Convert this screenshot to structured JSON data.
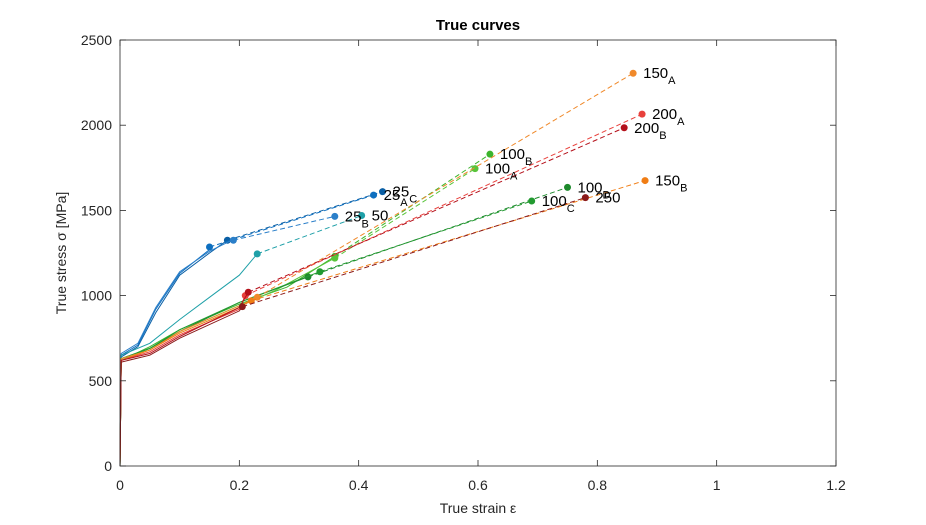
{
  "chart_data": {
    "type": "line",
    "title": "True curves",
    "xlabel": "True strain ε",
    "ylabel": "True stress σ [MPa]",
    "xlim": [
      0,
      1.2
    ],
    "ylim": [
      0,
      2500
    ],
    "xticks": [
      0,
      0.2,
      0.4,
      0.6,
      0.8,
      1,
      1.2
    ],
    "xtick_labels": [
      "0",
      "0.2",
      "0.4",
      "0.6",
      "0.8",
      "1",
      "1.2"
    ],
    "yticks": [
      0,
      500,
      1000,
      1500,
      2000,
      2500
    ],
    "ytick_labels": [
      "0",
      "500",
      "1000",
      "1500",
      "2000",
      "2500"
    ],
    "grid": false,
    "legend": "none",
    "series": [
      {
        "color": "#0a5fa5",
        "points": [
          [
            0,
            0
          ],
          [
            0.002,
            640
          ],
          [
            0.03,
            700
          ],
          [
            0.06,
            900
          ],
          [
            0.1,
            1120
          ],
          [
            0.15,
            1250
          ],
          [
            0.2,
            1340
          ],
          [
            0.3,
            1450
          ],
          [
            0.44,
            1560
          ]
        ],
        "neck": [
          0.18,
          1325
        ],
        "end": [
          0.44,
          1610
        ],
        "label_main": "25",
        "label_sub": "C"
      },
      {
        "color": "#0d6fc0",
        "points": [
          [
            0,
            0
          ],
          [
            0.002,
            650
          ],
          [
            0.03,
            710
          ],
          [
            0.06,
            920
          ],
          [
            0.1,
            1130
          ],
          [
            0.15,
            1270
          ],
          [
            0.2,
            1350
          ],
          [
            0.3,
            1460
          ],
          [
            0.42,
            1570
          ]
        ],
        "neck": [
          0.15,
          1285
        ],
        "end": [
          0.425,
          1590
        ],
        "label_main": "25",
        "label_sub": "A"
      },
      {
        "color": "#2b7fc9",
        "points": [
          [
            0,
            0
          ],
          [
            0.002,
            660
          ],
          [
            0.03,
            720
          ],
          [
            0.06,
            930
          ],
          [
            0.1,
            1140
          ],
          [
            0.15,
            1260
          ],
          [
            0.19,
            1330
          ],
          [
            0.3,
            1400
          ],
          [
            0.36,
            1440
          ]
        ],
        "neck": [
          0.19,
          1325
        ],
        "end": [
          0.36,
          1465
        ],
        "label_main": "25",
        "label_sub": "B"
      },
      {
        "color": "#1fa0a8",
        "points": [
          [
            0,
            0
          ],
          [
            0.002,
            650
          ],
          [
            0.05,
            720
          ],
          [
            0.1,
            860
          ],
          [
            0.15,
            990
          ],
          [
            0.2,
            1120
          ],
          [
            0.23,
            1245
          ],
          [
            0.3,
            1320
          ],
          [
            0.4,
            1470
          ]
        ],
        "neck": [
          0.23,
          1245
        ],
        "end": [
          0.405,
          1470
        ],
        "label_main": "50",
        "label_sub": ""
      },
      {
        "color": "#3cb42c",
        "points": [
          [
            0,
            0
          ],
          [
            0.002,
            620
          ],
          [
            0.05,
            700
          ],
          [
            0.1,
            800
          ],
          [
            0.2,
            950
          ],
          [
            0.28,
            1050
          ],
          [
            0.36,
            1230
          ],
          [
            0.5,
            1520
          ],
          [
            0.62,
            1830
          ]
        ],
        "neck": [
          0.36,
          1230
        ],
        "end": [
          0.62,
          1830
        ],
        "label_main": "100",
        "label_sub": "B"
      },
      {
        "color": "#58c43a",
        "points": [
          [
            0,
            0
          ],
          [
            0.002,
            620
          ],
          [
            0.05,
            690
          ],
          [
            0.1,
            790
          ],
          [
            0.2,
            940
          ],
          [
            0.26,
            1030
          ],
          [
            0.36,
            1220
          ],
          [
            0.48,
            1480
          ],
          [
            0.595,
            1745
          ]
        ],
        "neck": [
          0.36,
          1220
        ],
        "end": [
          0.595,
          1745
        ],
        "label_main": "100",
        "label_sub": "A"
      },
      {
        "color": "#1d8a2c",
        "points": [
          [
            0,
            0
          ],
          [
            0.002,
            630
          ],
          [
            0.05,
            690
          ],
          [
            0.1,
            790
          ],
          [
            0.2,
            960
          ],
          [
            0.315,
            1110
          ],
          [
            0.5,
            1340
          ],
          [
            0.75,
            1635
          ]
        ],
        "neck": [
          0.315,
          1110
        ],
        "end": [
          0.75,
          1635
        ],
        "label_main": "100",
        "label_sub": "D"
      },
      {
        "color": "#229a30",
        "points": [
          [
            0,
            0
          ],
          [
            0.002,
            630
          ],
          [
            0.05,
            690
          ],
          [
            0.1,
            800
          ],
          [
            0.2,
            960
          ],
          [
            0.335,
            1140
          ],
          [
            0.5,
            1320
          ],
          [
            0.69,
            1555
          ]
        ],
        "neck": [
          0.335,
          1140
        ],
        "end": [
          0.69,
          1555
        ],
        "label_main": "100",
        "label_sub": "C"
      },
      {
        "color": "#f0892a",
        "points": [
          [
            0,
            0
          ],
          [
            0.002,
            630
          ],
          [
            0.05,
            680
          ],
          [
            0.1,
            790
          ],
          [
            0.2,
            940
          ],
          [
            0.23,
            990
          ],
          [
            0.5,
            1500
          ],
          [
            0.86,
            2305
          ]
        ],
        "neck": [
          0.23,
          990
        ],
        "end": [
          0.86,
          2305
        ],
        "label_main": "150",
        "label_sub": "A"
      },
      {
        "color": "#f07d14",
        "points": [
          [
            0,
            0
          ],
          [
            0.002,
            620
          ],
          [
            0.05,
            680
          ],
          [
            0.1,
            780
          ],
          [
            0.2,
            930
          ],
          [
            0.22,
            970
          ],
          [
            0.5,
            1260
          ],
          [
            0.88,
            1675
          ]
        ],
        "neck": [
          0.22,
          970
        ],
        "end": [
          0.88,
          1675
        ],
        "label_main": "150",
        "label_sub": "B"
      },
      {
        "color": "#e8413c",
        "points": [
          [
            0,
            0
          ],
          [
            0.002,
            620
          ],
          [
            0.05,
            670
          ],
          [
            0.1,
            770
          ],
          [
            0.2,
            920
          ],
          [
            0.21,
            1000
          ],
          [
            0.5,
            1460
          ],
          [
            0.875,
            2065
          ]
        ],
        "neck": [
          0.21,
          1000
        ],
        "end": [
          0.875,
          2065
        ],
        "label_main": "200",
        "label_sub": "A"
      },
      {
        "color": "#b4101a",
        "points": [
          [
            0,
            0
          ],
          [
            0.002,
            620
          ],
          [
            0.05,
            660
          ],
          [
            0.1,
            760
          ],
          [
            0.2,
            930
          ],
          [
            0.215,
            1020
          ],
          [
            0.5,
            1440
          ],
          [
            0.845,
            1985
          ]
        ],
        "neck": [
          0.215,
          1020
        ],
        "end": [
          0.845,
          1985
        ],
        "label_main": "200",
        "label_sub": "B"
      },
      {
        "color": "#8b1a1a",
        "points": [
          [
            0,
            0
          ],
          [
            0.002,
            610
          ],
          [
            0.05,
            650
          ],
          [
            0.1,
            750
          ],
          [
            0.2,
            910
          ],
          [
            0.205,
            935
          ],
          [
            0.4,
            1200
          ],
          [
            0.78,
            1575
          ]
        ],
        "neck": [
          0.205,
          935
        ],
        "end": [
          0.78,
          1575
        ],
        "label_main": "250",
        "label_sub": ""
      }
    ]
  }
}
